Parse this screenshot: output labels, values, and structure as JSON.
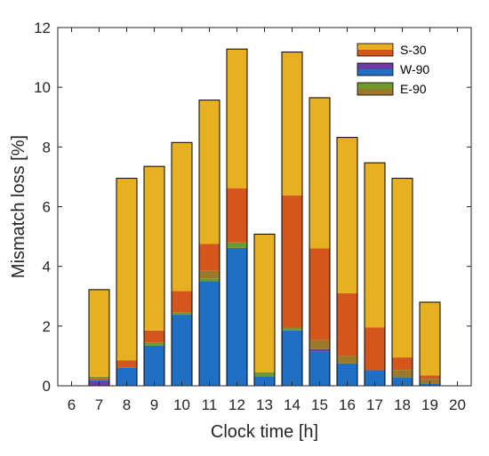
{
  "chart_data": {
    "type": "bar",
    "stacked": true,
    "xlabel": "Clock time [h]",
    "ylabel": "Mismatch loss [%]",
    "ylim": [
      0,
      12
    ],
    "yticks": [
      0,
      2,
      4,
      6,
      8,
      10,
      12
    ],
    "xlim": [
      5.5,
      20.5
    ],
    "xticks": [
      6,
      7,
      8,
      9,
      10,
      11,
      12,
      13,
      14,
      15,
      16,
      17,
      18,
      19,
      20
    ],
    "grid": false,
    "legend_position": "top-right",
    "segment_colors": {
      "blue": "#1f6fc4",
      "orange": "#d4561c",
      "gold": "#e6b020",
      "green": "#6f9a2a",
      "purple": "#6a3fa0",
      "brown": "#9a7a2a"
    },
    "legend": [
      {
        "name": "S-30",
        "fill": "#d4561c",
        "fill_top": "#e6b020"
      },
      {
        "name": "W-90",
        "fill": "#1f6fc4",
        "fill_top": "#6a3fa0"
      },
      {
        "name": "E-90",
        "fill": "#9a7a2a",
        "fill_top": "#6f9a2a"
      }
    ],
    "bars": [
      {
        "x": 7,
        "total": 3.22,
        "segments": [
          {
            "value": 0.15,
            "color": "purple"
          },
          {
            "value": 0.05,
            "color": "blue"
          },
          {
            "value": 0.06,
            "color": "orange"
          },
          {
            "value": 0.04,
            "color": "green"
          },
          {
            "value": 2.92,
            "color": "gold"
          }
        ]
      },
      {
        "x": 8,
        "total": 6.95,
        "segments": [
          {
            "value": 0.6,
            "color": "blue"
          },
          {
            "value": 0.25,
            "color": "orange"
          },
          {
            "value": 6.1,
            "color": "gold"
          }
        ]
      },
      {
        "x": 9,
        "total": 7.35,
        "segments": [
          {
            "value": 1.35,
            "color": "blue"
          },
          {
            "value": 0.1,
            "color": "green"
          },
          {
            "value": 0.4,
            "color": "orange"
          },
          {
            "value": 5.5,
            "color": "gold"
          }
        ]
      },
      {
        "x": 10,
        "total": 8.15,
        "segments": [
          {
            "value": 2.38,
            "color": "blue"
          },
          {
            "value": 0.07,
            "color": "green"
          },
          {
            "value": 0.72,
            "color": "orange"
          },
          {
            "value": 4.98,
            "color": "gold"
          }
        ]
      },
      {
        "x": 11,
        "total": 9.57,
        "segments": [
          {
            "value": 3.5,
            "color": "blue"
          },
          {
            "value": 0.1,
            "color": "green"
          },
          {
            "value": 0.25,
            "color": "brown"
          },
          {
            "value": 0.9,
            "color": "orange"
          },
          {
            "value": 4.82,
            "color": "gold"
          }
        ]
      },
      {
        "x": 12,
        "total": 11.28,
        "segments": [
          {
            "value": 4.62,
            "color": "blue"
          },
          {
            "value": 0.18,
            "color": "green"
          },
          {
            "value": 1.82,
            "color": "orange"
          },
          {
            "value": 4.66,
            "color": "gold"
          }
        ]
      },
      {
        "x": 13,
        "total": 5.08,
        "segments": [
          {
            "value": 0.32,
            "color": "blue"
          },
          {
            "value": 0.13,
            "color": "green"
          },
          {
            "value": 4.63,
            "color": "gold"
          }
        ]
      },
      {
        "x": 14,
        "total": 11.18,
        "segments": [
          {
            "value": 1.85,
            "color": "blue"
          },
          {
            "value": 0.1,
            "color": "green"
          },
          {
            "value": 4.43,
            "color": "orange"
          },
          {
            "value": 4.8,
            "color": "gold"
          }
        ]
      },
      {
        "x": 15,
        "total": 9.65,
        "segments": [
          {
            "value": 1.15,
            "color": "blue"
          },
          {
            "value": 0.08,
            "color": "purple"
          },
          {
            "value": 0.3,
            "color": "brown"
          },
          {
            "value": 3.07,
            "color": "orange"
          },
          {
            "value": 5.05,
            "color": "gold"
          }
        ]
      },
      {
        "x": 16,
        "total": 8.32,
        "segments": [
          {
            "value": 0.75,
            "color": "blue"
          },
          {
            "value": 0.25,
            "color": "brown"
          },
          {
            "value": 2.1,
            "color": "orange"
          },
          {
            "value": 5.22,
            "color": "gold"
          }
        ]
      },
      {
        "x": 17,
        "total": 7.47,
        "segments": [
          {
            "value": 0.52,
            "color": "blue"
          },
          {
            "value": 1.43,
            "color": "orange"
          },
          {
            "value": 5.52,
            "color": "gold"
          }
        ]
      },
      {
        "x": 18,
        "total": 6.95,
        "segments": [
          {
            "value": 0.28,
            "color": "blue"
          },
          {
            "value": 0.25,
            "color": "brown"
          },
          {
            "value": 0.42,
            "color": "orange"
          },
          {
            "value": 6.0,
            "color": "gold"
          }
        ]
      },
      {
        "x": 19,
        "total": 2.8,
        "segments": [
          {
            "value": 0.08,
            "color": "blue"
          },
          {
            "value": 0.15,
            "color": "brown"
          },
          {
            "value": 0.12,
            "color": "orange"
          },
          {
            "value": 2.45,
            "color": "gold"
          }
        ]
      }
    ]
  }
}
